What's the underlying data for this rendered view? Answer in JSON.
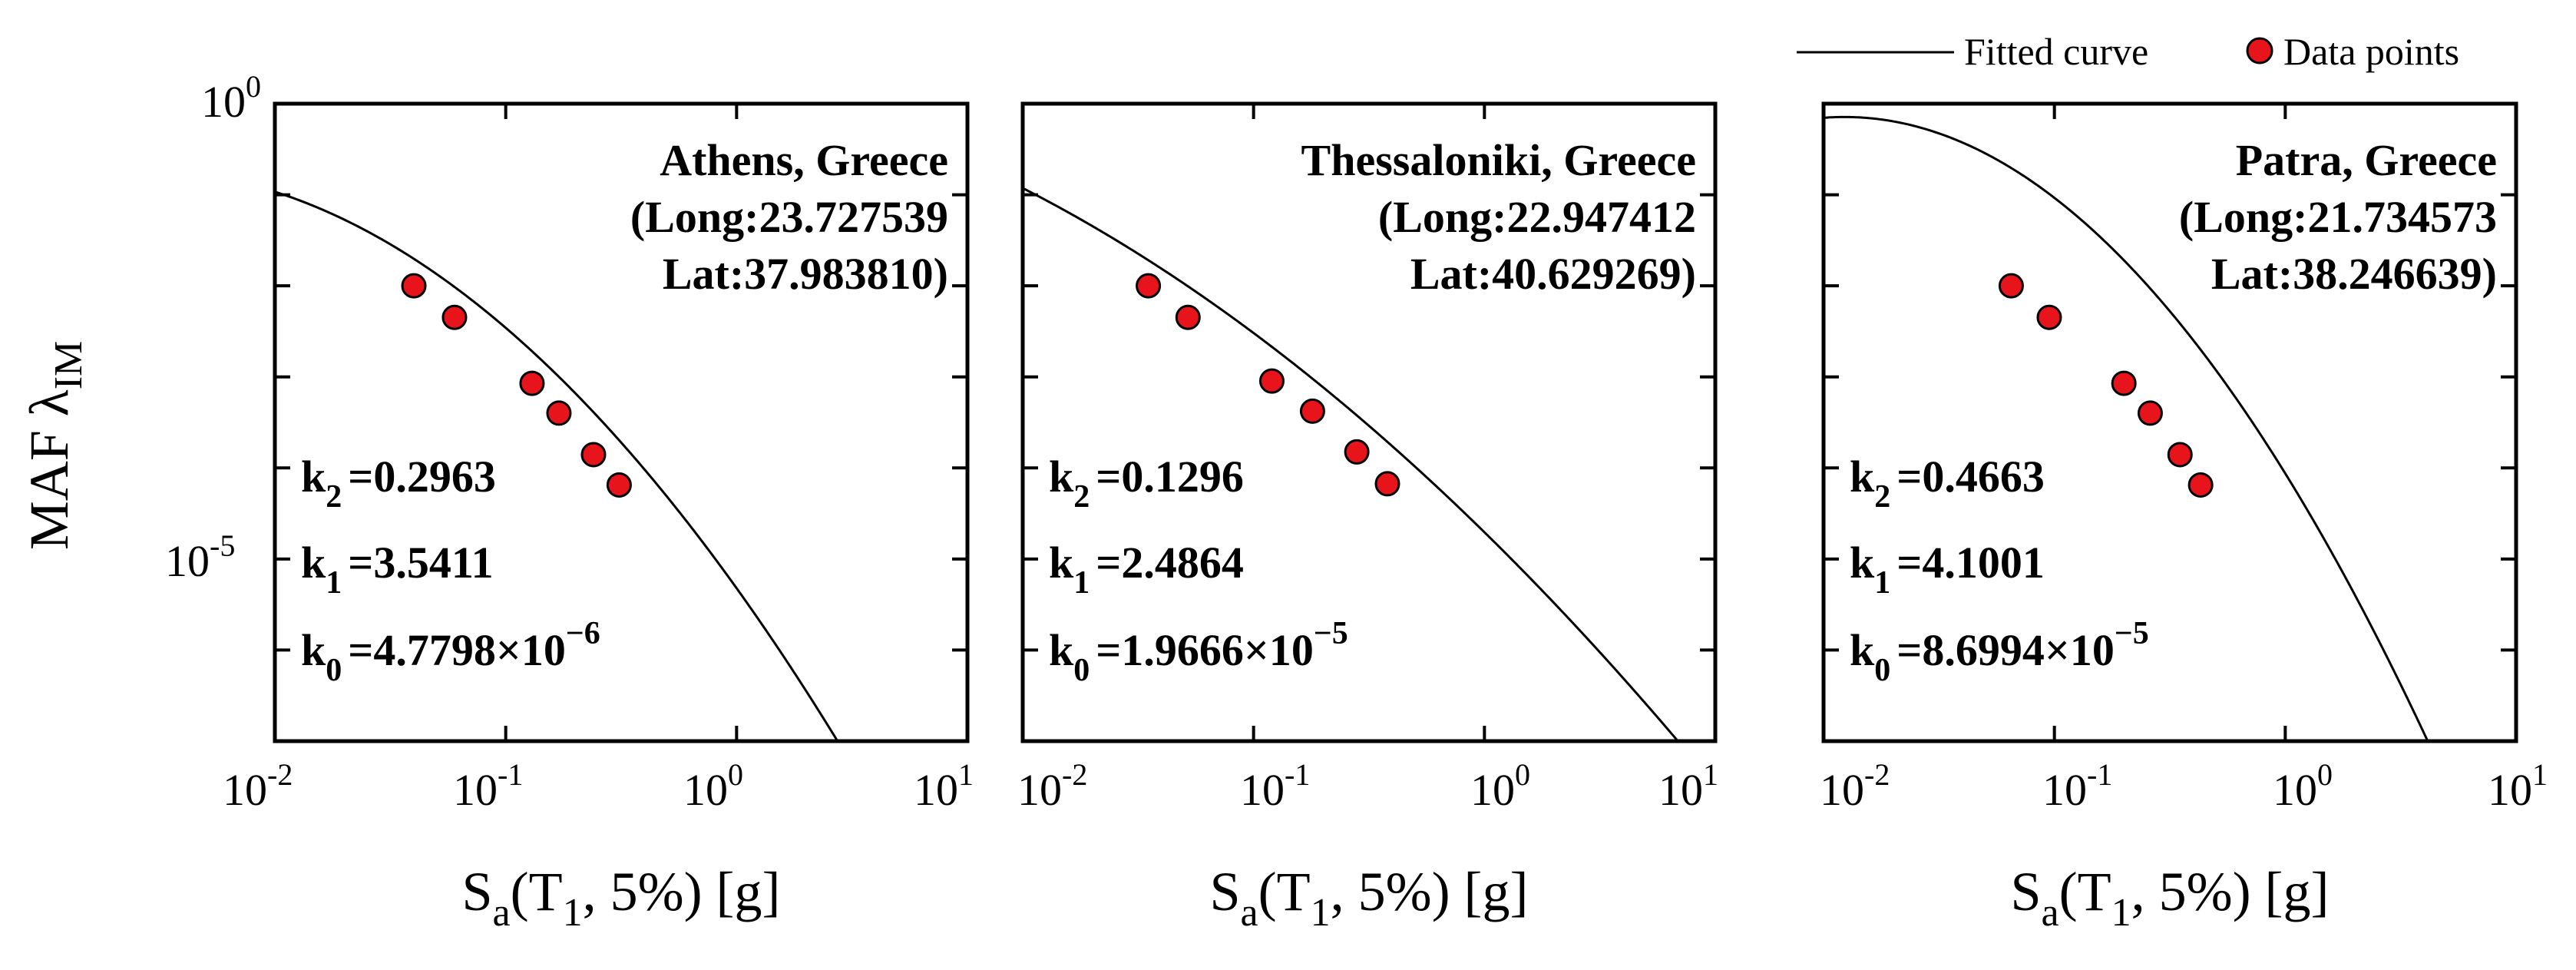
{
  "legend": {
    "line_label": "Fitted curve",
    "marker_label": "Data points"
  },
  "colors": {
    "marker_fill": "#e8141c",
    "marker_edge": "#000000",
    "curve": "#000000",
    "axes": "#000000"
  },
  "chart_data": [
    {
      "type": "line",
      "title": "Athens, Greece",
      "coords": {
        "long": "(Long:23.727539",
        "lat": "Lat:37.983810)"
      },
      "xscale": "log",
      "yscale": "log",
      "xlim": [
        0.01,
        10
      ],
      "ylim": [
        1e-07,
        1
      ],
      "xticks": [
        "-2",
        "-1",
        "0",
        "1"
      ],
      "yticks": [
        "0",
        "-5"
      ],
      "xlabel": {
        "main": "S",
        "sub1": "a",
        "mid": "(T",
        "sub2": "1",
        "tail": ", 5%) [g]"
      },
      "ylabel": {
        "main": "MAF λ",
        "sub": "IM"
      },
      "params": {
        "k2": {
          "label": "k",
          "sub": "2",
          "value": "=0.2963"
        },
        "k1": {
          "label": "k",
          "sub": "1",
          "value": "=3.5411"
        },
        "k0": {
          "label": "k",
          "sub": "0",
          "value": "=4.7798×10",
          "exp": "−6"
        }
      },
      "k0": 4.7798e-06,
      "k1": 3.5411,
      "k2": 0.2963,
      "points": {
        "x": [
          0.04,
          0.06,
          0.13,
          0.17,
          0.24,
          0.31
        ],
        "y": [
          0.01,
          0.0045,
          0.00085,
          0.0004,
          0.00014,
          6.5e-05
        ]
      }
    },
    {
      "type": "line",
      "title": "Thessaloniki, Greece",
      "coords": {
        "long": "(Long:22.947412",
        "lat": "Lat:40.629269)"
      },
      "xscale": "log",
      "yscale": "log",
      "xlim": [
        0.01,
        10
      ],
      "ylim": [
        1e-07,
        1
      ],
      "xticks": [
        "-2",
        "-1",
        "0",
        "1"
      ],
      "yticks": [
        "0",
        "-5"
      ],
      "xlabel": {
        "main": "S",
        "sub1": "a",
        "mid": "(T",
        "sub2": "1",
        "tail": ", 5%) [g]"
      },
      "params": {
        "k2": {
          "label": "k",
          "sub": "2",
          "value": "=0.1296"
        },
        "k1": {
          "label": "k",
          "sub": "1",
          "value": "=2.4864"
        },
        "k0": {
          "label": "k",
          "sub": "0",
          "value": "=1.9666×10",
          "exp": "−5"
        }
      },
      "k0": 1.9666e-05,
      "k1": 2.4864,
      "k2": 0.1296,
      "points": {
        "x": [
          0.035,
          0.052,
          0.12,
          0.18,
          0.28,
          0.38
        ],
        "y": [
          0.01,
          0.0045,
          0.0009,
          0.00042,
          0.00015,
          6.7e-05
        ]
      }
    },
    {
      "type": "line",
      "title": "Patra, Greece",
      "coords": {
        "long": "(Long:21.734573",
        "lat": "Lat:38.246639)"
      },
      "xscale": "log",
      "yscale": "log",
      "xlim": [
        0.01,
        10
      ],
      "ylim": [
        1e-07,
        1
      ],
      "xticks": [
        "-2",
        "-1",
        "0",
        "1"
      ],
      "yticks": [
        "0",
        "-5"
      ],
      "xlabel": {
        "main": "S",
        "sub1": "a",
        "mid": "(T",
        "sub2": "1",
        "tail": ", 5%) [g]"
      },
      "params": {
        "k2": {
          "label": "k",
          "sub": "2",
          "value": "=0.4663"
        },
        "k1": {
          "label": "k",
          "sub": "1",
          "value": "=4.1001"
        },
        "k0": {
          "label": "k",
          "sub": "0",
          "value": "=8.6994×10",
          "exp": "−5"
        }
      },
      "k0": 8.6994e-05,
      "k1": 4.1001,
      "k2": 0.4663,
      "points": {
        "x": [
          0.065,
          0.095,
          0.2,
          0.26,
          0.35,
          0.43
        ],
        "y": [
          0.01,
          0.0045,
          0.00085,
          0.0004,
          0.00014,
          6.5e-05
        ]
      }
    }
  ]
}
